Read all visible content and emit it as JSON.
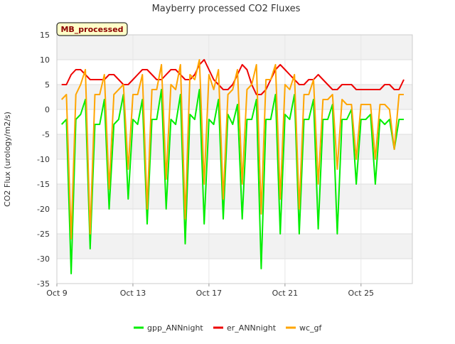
{
  "chart_data": {
    "type": "line",
    "title": "Mayberry processed CO2 Fluxes",
    "badge": "MB_processed",
    "xlabel": "",
    "ylabel": "CO2 Flux (urology/m2/s)",
    "xlim": [
      9,
      27.7
    ],
    "ylim": [
      -35,
      15
    ],
    "yticks": [
      15,
      10,
      5,
      0,
      -5,
      -10,
      -15,
      -20,
      -25,
      -30,
      -35
    ],
    "xticks": [
      {
        "label": "Oct 9",
        "value": 9
      },
      {
        "label": "Oct 13",
        "value": 13
      },
      {
        "label": "Oct 17",
        "value": 17
      },
      {
        "label": "Oct 21",
        "value": 21
      },
      {
        "label": "Oct 25",
        "value": 25
      }
    ],
    "legend_position": "bottom",
    "start_day": 9.25,
    "step_days": 0.25,
    "series": [
      {
        "name": "gpp_ANNnight",
        "color": "#00ee00",
        "values": [
          -3,
          -2,
          -33,
          -2,
          -1,
          2,
          -28,
          -3,
          -3,
          2,
          -20,
          -3,
          -2,
          3,
          -18,
          -2,
          -3,
          2,
          -23,
          -2,
          -2,
          4,
          -20,
          -2,
          -3,
          3,
          -27,
          -1,
          -2,
          4,
          -23,
          -2,
          -3,
          2,
          -22,
          -1,
          -3,
          1,
          -22,
          -2,
          -2,
          2,
          -32,
          -2,
          -2,
          3,
          -25,
          -1,
          -2,
          3,
          -25,
          -2,
          -2,
          2,
          -24,
          -2,
          -2,
          1,
          -25,
          -2,
          -2,
          0,
          -15,
          -2,
          -2,
          -1,
          -15,
          -2,
          -3,
          -2,
          -8,
          -2,
          -2
        ]
      },
      {
        "name": "er_ANNnight",
        "color": "#ee0000",
        "values": [
          5,
          5,
          7,
          8,
          8,
          7,
          6,
          6,
          6,
          6,
          7,
          7,
          6,
          5,
          5,
          6,
          7,
          8,
          8,
          7,
          6,
          6,
          7,
          8,
          8,
          7,
          6,
          6,
          7,
          9,
          10,
          8,
          6,
          5,
          4,
          4,
          5,
          7,
          9,
          8,
          5,
          3,
          3,
          4,
          6,
          8,
          9,
          8,
          7,
          6,
          5,
          5,
          6,
          6,
          7,
          6,
          5,
          4,
          4,
          5,
          5,
          5,
          4,
          4,
          4,
          4,
          4,
          4,
          5,
          5,
          4,
          4,
          6
        ]
      },
      {
        "name": "wc_gf",
        "color": "#ffa500",
        "values": [
          2,
          3,
          -26,
          3,
          5,
          8,
          -25,
          3,
          3,
          7,
          -16,
          3,
          4,
          5,
          -12,
          3,
          3,
          7,
          -20,
          4,
          4,
          9,
          -14,
          5,
          4,
          9,
          -22,
          7,
          6,
          10,
          -15,
          7,
          4,
          8,
          -18,
          3,
          4,
          8,
          -15,
          4,
          5,
          9,
          -21,
          6,
          6,
          9,
          -18,
          5,
          4,
          7,
          -20,
          3,
          3,
          6,
          -15,
          2,
          2,
          3,
          -12,
          2,
          1,
          1,
          -10,
          1,
          1,
          1,
          -10,
          1,
          1,
          0,
          -8,
          3,
          3
        ]
      }
    ]
  }
}
